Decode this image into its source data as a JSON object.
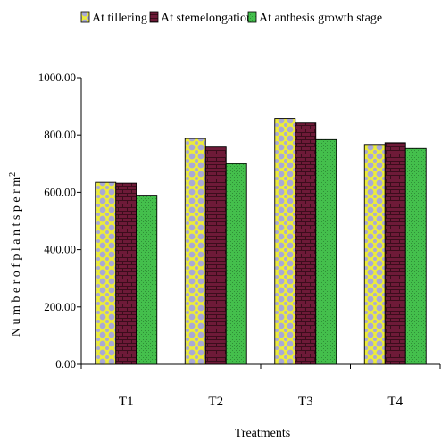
{
  "chart_data": {
    "type": "bar",
    "categories": [
      "T1",
      "T2",
      "T3",
      "T4"
    ],
    "series": [
      {
        "name": "At tillering",
        "values": [
          635,
          788,
          858,
          767
        ],
        "color": "#d8d85a"
      },
      {
        "name": "At stemelongation",
        "values": [
          632,
          758,
          842,
          773
        ],
        "color": "#7a2040"
      },
      {
        "name": "At anthesis growth stage",
        "values": [
          590,
          700,
          784,
          753
        ],
        "color": "#3fb84a"
      }
    ],
    "title": "",
    "xlabel": "Treatments",
    "ylabel": "N u m b e r o f p l a n t s p e r m",
    "ylabel_superscript": "2",
    "ylim": [
      0,
      1000
    ],
    "yticks": [
      "0.00",
      "200.00",
      "400.00",
      "600.00",
      "800.00",
      "1000.00"
    ],
    "grid": false,
    "legend_position": "top"
  }
}
